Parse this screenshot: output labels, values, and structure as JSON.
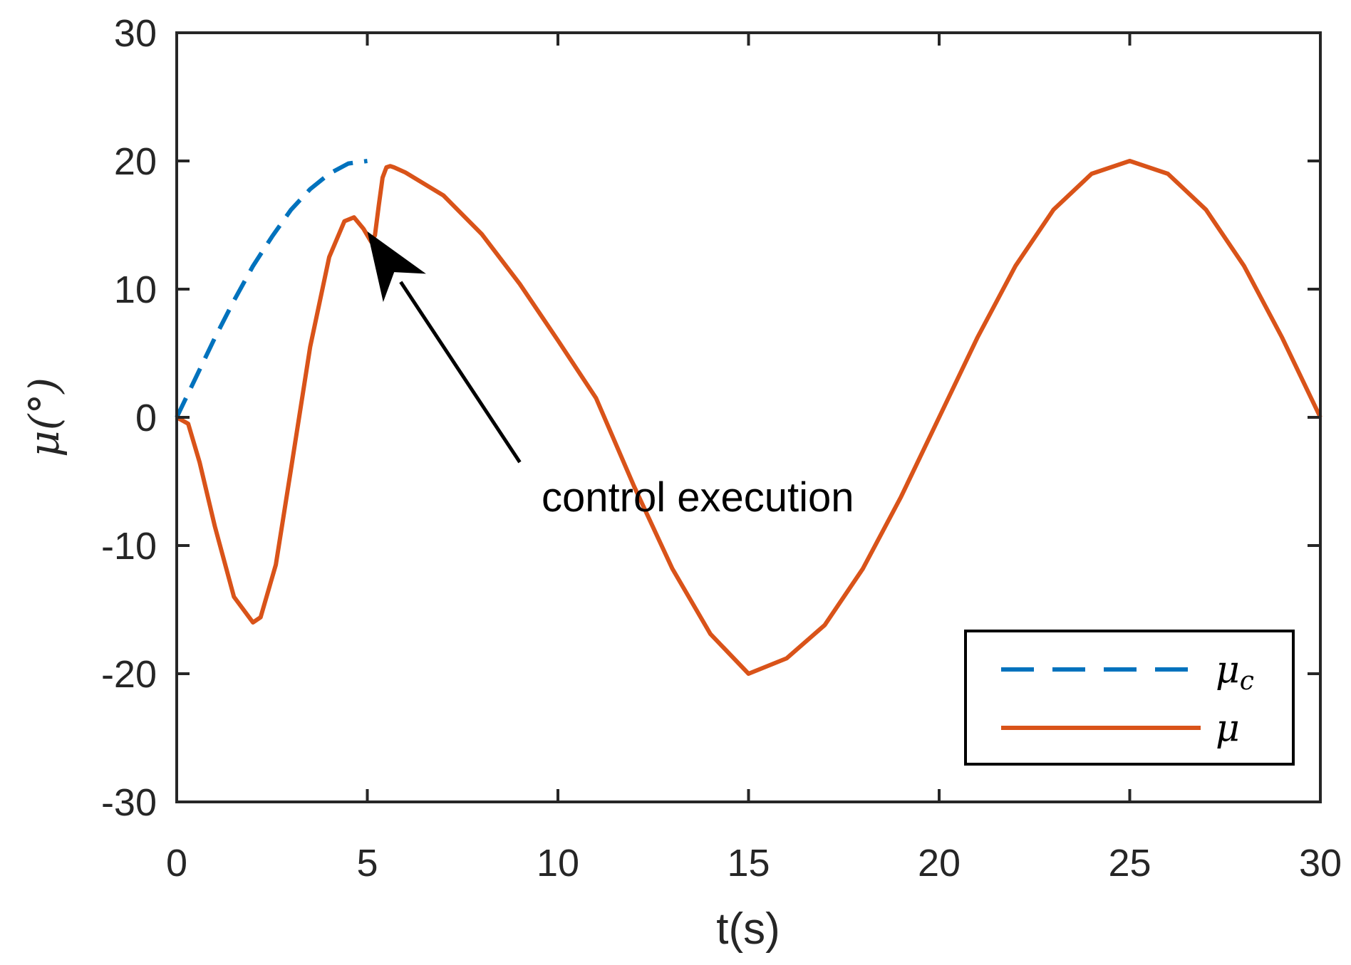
{
  "chart_data": {
    "type": "line",
    "xlabel": "t(s)",
    "ylabel": "μ(°)",
    "xlim": [
      0,
      30
    ],
    "ylim": [
      -30,
      30
    ],
    "xticks": [
      0,
      5,
      10,
      15,
      20,
      25,
      30
    ],
    "yticks": [
      30,
      20,
      10,
      0,
      -10,
      -20,
      -30
    ],
    "xtick_labels": [
      "0",
      "5",
      "10",
      "15",
      "20",
      "25",
      "30"
    ],
    "ytick_labels": [
      "30",
      "20",
      "10",
      "0",
      "-10",
      "-20",
      "-30"
    ],
    "grid": false,
    "legend_position": "bottom-right",
    "series": [
      {
        "name": "μ_c",
        "legend_label": "μ",
        "legend_sub": "c",
        "color": "#0072BD",
        "style": "dashed",
        "x": [
          0,
          0.5,
          1,
          1.5,
          2,
          2.5,
          3,
          3.5,
          4,
          4.5,
          5
        ],
        "y": [
          0,
          3.1,
          6.2,
          9.1,
          11.8,
          14.1,
          16.2,
          17.8,
          19.0,
          19.8,
          20.0
        ]
      },
      {
        "name": "μ",
        "legend_label": "μ",
        "legend_sub": "",
        "color": "#D95319",
        "style": "solid",
        "x": [
          0,
          0.3,
          0.6,
          1.0,
          1.5,
          2.0,
          2.2,
          2.6,
          3.0,
          3.5,
          4.0,
          4.4,
          4.65,
          4.9,
          5.1,
          5.2,
          5.3,
          5.4,
          5.5,
          5.6,
          5.7,
          6.0,
          7,
          8,
          9,
          10,
          11,
          12,
          13,
          14,
          15,
          16,
          17,
          18,
          19,
          20,
          21,
          22,
          23,
          24,
          25,
          26,
          27,
          28,
          29,
          30
        ],
        "y": [
          0,
          -0.5,
          -3.5,
          -8.5,
          -14.0,
          -16.0,
          -15.6,
          -11.5,
          -4.0,
          5.5,
          12.5,
          15.3,
          15.6,
          14.7,
          13.7,
          14.2,
          16.5,
          18.7,
          19.5,
          19.6,
          19.5,
          19.1,
          17.3,
          14.3,
          10.4,
          6.0,
          1.5,
          -5.4,
          -11.8,
          -16.9,
          -20.0,
          -18.8,
          -16.2,
          -11.8,
          -6.2,
          0.0,
          6.2,
          11.8,
          16.2,
          19.0,
          20.0,
          19.0,
          16.2,
          11.8,
          6.2,
          0.0
        ]
      }
    ],
    "annotations": [
      {
        "text": "control execution",
        "arrow_from": [
          9.0,
          -3.5
        ],
        "arrow_to": [
          5.0,
          14.5
        ]
      }
    ]
  }
}
